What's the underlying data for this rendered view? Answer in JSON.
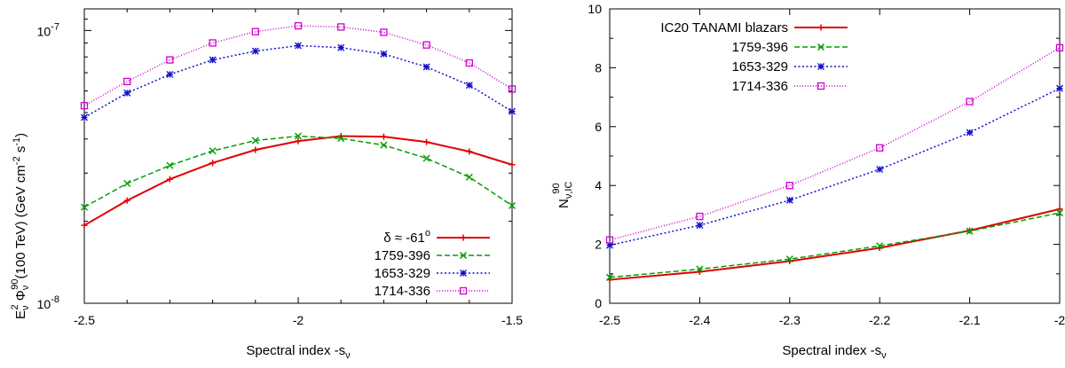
{
  "chart_data": [
    {
      "type": "line",
      "yscale": "log",
      "x": [
        -2.5,
        -2.4,
        -2.3,
        -2.2,
        -2.1,
        -2.0,
        -1.9,
        -1.8,
        -1.7,
        -1.6,
        -1.5
      ],
      "xlim": [
        -2.5,
        -1.5
      ],
      "ylim": [
        1e-08,
        1.2e-07
      ],
      "xticks": [
        {
          "v": -2.5,
          "label": "-2.5"
        },
        {
          "v": -2.0,
          "label": "-2"
        },
        {
          "v": -1.5,
          "label": "-1.5"
        }
      ],
      "yticks": [
        {
          "v": 1e-08,
          "base": "10",
          "exp": "-8"
        },
        {
          "v": 1e-07,
          "base": "10",
          "exp": "-7"
        }
      ],
      "xlabel": {
        "text": "Spectral index -s",
        "sub": "ν"
      },
      "ylabel": {
        "e": "E",
        "e_sub": "ν",
        "e_sup": "2",
        "phi": " Φ",
        "phi_sub": "ν",
        "phi_sup": "90",
        "mid": "(100 TeV) (GeV cm",
        "cm_sup": "-2",
        "s": " s",
        "s_sup": "-1",
        "close": ")"
      },
      "legend_position": "bottom-right",
      "series": [
        {
          "name": "δ ≈ -61",
          "name_sup": "o",
          "color": "#e00000",
          "dash": "",
          "marker": "plus",
          "width": 2,
          "values": [
            1.93e-08,
            2.38e-08,
            2.85e-08,
            3.27e-08,
            3.65e-08,
            3.93e-08,
            4.1e-08,
            4.08e-08,
            3.9e-08,
            3.6e-08,
            3.22e-08
          ]
        },
        {
          "name": "1759-396",
          "color": "#00a000",
          "dash": "6,3",
          "marker": "x",
          "width": 1.5,
          "values": [
            2.25e-08,
            2.75e-08,
            3.2e-08,
            3.62e-08,
            3.95e-08,
            4.1e-08,
            4.02e-08,
            3.8e-08,
            3.4e-08,
            2.9e-08,
            2.28e-08
          ]
        },
        {
          "name": "1653-329",
          "color": "#1010d0",
          "dash": "2,2.5",
          "marker": "star",
          "width": 1.5,
          "values": [
            4.8e-08,
            5.9e-08,
            6.9e-08,
            7.8e-08,
            8.4e-08,
            8.8e-08,
            8.65e-08,
            8.2e-08,
            7.35e-08,
            6.3e-08,
            5.05e-08
          ]
        },
        {
          "name": "1714-336",
          "color": "#d000d0",
          "dash": "1,2",
          "marker": "square",
          "width": 1.5,
          "values": [
            5.3e-08,
            6.5e-08,
            7.8e-08,
            9e-08,
            9.9e-08,
            1.04e-07,
            1.03e-07,
            9.85e-08,
            8.85e-08,
            7.6e-08,
            6.1e-08
          ]
        }
      ]
    },
    {
      "type": "line",
      "yscale": "linear",
      "x": [
        -2.5,
        -2.4,
        -2.3,
        -2.2,
        -2.1,
        -2.0
      ],
      "xlim": [
        -2.5,
        -2.0
      ],
      "ylim": [
        0,
        10
      ],
      "xticks": [
        {
          "v": -2.5,
          "label": "-2.5"
        },
        {
          "v": -2.4,
          "label": "-2.4"
        },
        {
          "v": -2.3,
          "label": "-2.3"
        },
        {
          "v": -2.2,
          "label": "-2.2"
        },
        {
          "v": -2.1,
          "label": "-2.1"
        },
        {
          "v": -2.0,
          "label": "-2"
        }
      ],
      "yticks": [
        {
          "v": 0,
          "label": "0"
        },
        {
          "v": 2,
          "label": "2"
        },
        {
          "v": 4,
          "label": "4"
        },
        {
          "v": 6,
          "label": "6"
        },
        {
          "v": 8,
          "label": "8"
        },
        {
          "v": 10,
          "label": "10"
        }
      ],
      "xlabel": {
        "text": "Spectral index -s",
        "sub": "ν"
      },
      "ylabel": {
        "n": "N",
        "n_sub": "ν,IC",
        "n_sup": "90"
      },
      "legend_position": "top-left",
      "series": [
        {
          "name": "IC20 TANAMI blazars",
          "color": "#e00000",
          "dash": "",
          "marker": "plus",
          "width": 2,
          "values": [
            0.8,
            1.07,
            1.43,
            1.88,
            2.47,
            3.2
          ]
        },
        {
          "name": "1759-396",
          "color": "#00a000",
          "dash": "6,3",
          "marker": "x",
          "width": 1.5,
          "values": [
            0.88,
            1.16,
            1.5,
            1.95,
            2.45,
            3.07
          ]
        },
        {
          "name": "1653-329",
          "color": "#1010d0",
          "dash": "2,2.5",
          "marker": "star",
          "width": 1.5,
          "values": [
            1.97,
            2.65,
            3.5,
            4.55,
            5.8,
            7.3
          ]
        },
        {
          "name": "1714-336",
          "color": "#d000d0",
          "dash": "1,2",
          "marker": "square",
          "width": 1.5,
          "values": [
            2.15,
            2.95,
            4.0,
            5.28,
            6.85,
            8.68
          ]
        }
      ]
    }
  ]
}
